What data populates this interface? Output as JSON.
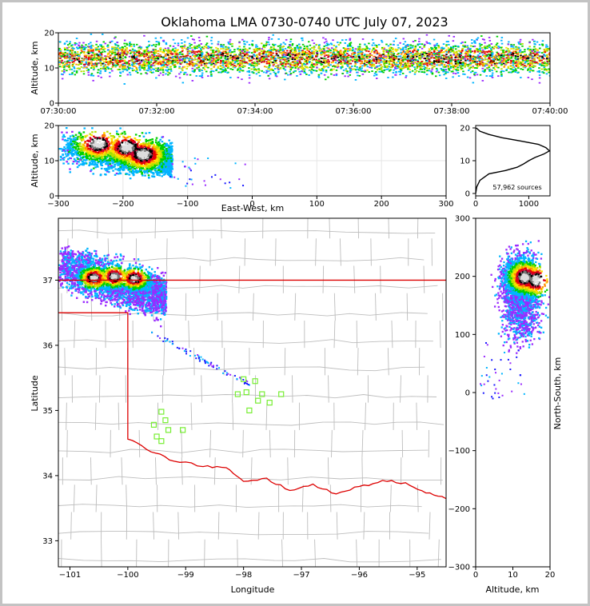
{
  "chart_data": [
    {
      "panel": "time-altitude",
      "type": "heatmap",
      "title": "Oklahoma LMA 0730-0740 UTC July 07, 2023",
      "ylabel": "Altitude, km",
      "xlim": [
        "07:30:00",
        "07:40:00"
      ],
      "ylim": [
        0,
        20
      ],
      "x_ticks": [
        "07:30:00",
        "07:32:00",
        "07:34:00",
        "07:36:00",
        "07:38:00",
        "07:40:00"
      ],
      "y_ticks": [
        "0",
        "10",
        "20"
      ],
      "altitude_band_km": [
        4,
        20
      ],
      "densest_altitude_km": 13
    },
    {
      "panel": "east-west-altitude",
      "type": "heatmap",
      "xlabel": "East-West, km",
      "ylabel": "Altitude, km",
      "xlim": [
        -300,
        300
      ],
      "ylim": [
        0,
        20
      ],
      "x_ticks": [
        "−300",
        "−200",
        "−100",
        "0",
        "100",
        "200",
        "300"
      ],
      "y_ticks": [
        "0",
        "10",
        "20"
      ],
      "grid": true,
      "clusters": [
        {
          "x_km": -240,
          "alt_km": 15,
          "intensity": "high"
        },
        {
          "x_km": -195,
          "alt_km": 14,
          "intensity": "high"
        },
        {
          "x_km": -170,
          "alt_km": 12,
          "intensity": "high"
        }
      ]
    },
    {
      "panel": "altitude-histogram",
      "type": "line",
      "xlim": [
        0,
        1400
      ],
      "ylim": [
        0,
        20
      ],
      "x_ticks": [
        "0",
        "1000"
      ],
      "y_ticks": [
        "0",
        "10",
        "20"
      ],
      "annotation": "57,962 sources",
      "profile": [
        {
          "alt": 0,
          "count": 0
        },
        {
          "alt": 2,
          "count": 20
        },
        {
          "alt": 4,
          "count": 80
        },
        {
          "alt": 6,
          "count": 250
        },
        {
          "alt": 7,
          "count": 560
        },
        {
          "alt": 8,
          "count": 780
        },
        {
          "alt": 9,
          "count": 900
        },
        {
          "alt": 10,
          "count": 1000
        },
        {
          "alt": 11,
          "count": 1120
        },
        {
          "alt": 12,
          "count": 1280
        },
        {
          "alt": 13,
          "count": 1390
        },
        {
          "alt": 14,
          "count": 1320
        },
        {
          "alt": 15,
          "count": 1180
        },
        {
          "alt": 16,
          "count": 850
        },
        {
          "alt": 17,
          "count": 500
        },
        {
          "alt": 18,
          "count": 250
        },
        {
          "alt": 19,
          "count": 80
        },
        {
          "alt": 20,
          "count": 10
        }
      ]
    },
    {
      "panel": "plan-view-map",
      "type": "heatmap",
      "xlabel": "Longitude",
      "ylabel": "Latitude",
      "xlim": [
        -101.2,
        -94.5
      ],
      "ylim": [
        32.6,
        37.95
      ],
      "x_ticks": [
        "−101",
        "−100",
        "−99",
        "−98",
        "−97",
        "−96",
        "−95"
      ],
      "y_ticks": [
        "33",
        "34",
        "35",
        "36",
        "37"
      ],
      "clusters": [
        {
          "lon": -100.6,
          "lat": 37.05,
          "intensity": "high"
        },
        {
          "lon": -100.25,
          "lat": 37.07,
          "intensity": "high"
        },
        {
          "lon": -99.9,
          "lat": 37.04,
          "intensity": "high"
        }
      ],
      "stations": [
        {
          "lon": -99.42,
          "lat": 34.98
        },
        {
          "lon": -99.35,
          "lat": 34.85
        },
        {
          "lon": -99.55,
          "lat": 34.78
        },
        {
          "lon": -99.3,
          "lat": 34.7
        },
        {
          "lon": -99.05,
          "lat": 34.7
        },
        {
          "lon": -99.5,
          "lat": 34.6
        },
        {
          "lon": -99.42,
          "lat": 34.53
        },
        {
          "lon": -98.0,
          "lat": 35.48
        },
        {
          "lon": -97.8,
          "lat": 35.45
        },
        {
          "lon": -98.1,
          "lat": 35.25
        },
        {
          "lon": -97.95,
          "lat": 35.28
        },
        {
          "lon": -97.68,
          "lat": 35.25
        },
        {
          "lon": -97.75,
          "lat": 35.15
        },
        {
          "lon": -97.55,
          "lat": 35.12
        },
        {
          "lon": -97.35,
          "lat": 35.25
        },
        {
          "lon": -97.9,
          "lat": 35.0
        }
      ]
    },
    {
      "panel": "altitude-north-south",
      "type": "heatmap",
      "xlabel": "Altitude, km",
      "ylabel": "North-South, km",
      "xlim": [
        0,
        20
      ],
      "ylim": [
        -300,
        300
      ],
      "x_ticks": [
        "0",
        "10",
        "20"
      ],
      "y_ticks": [
        "−300",
        "−200",
        "−100",
        "0",
        "100",
        "200",
        "300"
      ],
      "clusters": [
        {
          "alt_km": 13,
          "y_km": 200,
          "intensity": "high"
        },
        {
          "alt_km": 16,
          "y_km": 195,
          "intensity": "high"
        }
      ]
    }
  ],
  "colors": {
    "density_scale": [
      "#1a1aff",
      "#9a2aff",
      "#00b5ff",
      "#00d000",
      "#b8e000",
      "#ffe000",
      "#ff8c00",
      "#e80000",
      "#cc0033",
      "#000000",
      "#777777",
      "#dddddd"
    ],
    "state_border": "#dd0000",
    "county_lines": "#bdbdbd",
    "station_marker": "#77ee33",
    "outer_border": "#c3c3c3"
  }
}
